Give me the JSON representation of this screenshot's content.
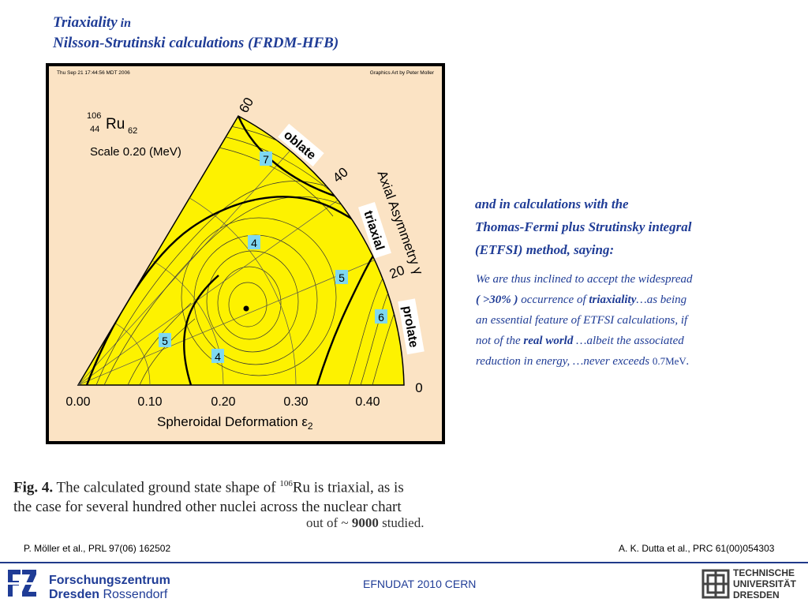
{
  "slide": {
    "title_word": "Triaxiality",
    "title_in": " in",
    "title_line2": "Nilsson-Strutinski calculations (FRDM-HFB)"
  },
  "figure": {
    "timestamp": "Thu Sep 21 17:44:56 MDT 2006",
    "credit": "Graphics Art by Peter Moller",
    "nucleus_mass": "106",
    "nucleus_z": "44",
    "nucleus_symbol": "Ru",
    "nucleus_n": "62",
    "scale_label": "Scale 0.20 (MeV)",
    "x_axis_label": "Spheroidal Deformation ε",
    "x_axis_sub": "2",
    "x_ticks": [
      "0.00",
      "0.10",
      "0.20",
      "0.30",
      "0.40"
    ],
    "gamma_axis_label": "Axial Asymmetry γ",
    "gamma_ticks": [
      "60",
      "40",
      "20",
      "0"
    ],
    "region_labels": [
      "oblate",
      "triaxial",
      "prolate"
    ],
    "contour_labels": [
      "7",
      "4",
      "5",
      "6",
      "5",
      "4"
    ],
    "colors": {
      "fill": "#fdf200",
      "background": "#fbe3c4",
      "label_box": "#7fd8f0"
    }
  },
  "right_text": {
    "heading_l1": "and in calculations with the",
    "heading_l2": "Thomas-Fermi plus Strutinsky integral",
    "heading_l3": "(ETFSI) method, saying:",
    "q_l1": "We are thus inclined to accept the widespread",
    "q_open": "( >30% )",
    "q_mid": " occurrence of ",
    "q_triax": "triaxiality",
    "q_end1": "…as being",
    "q_l3": "an essential feature of ETFSI calculations, if",
    "q_l4a": "not of the ",
    "q_real": "real world",
    "q_l4b": " …albeit the associated",
    "q_l5a": "reduction in energy, …never exceeds ",
    "q_mev": "0.7MeV",
    "q_l5b": "."
  },
  "caption": {
    "fig": "Fig. 4.",
    "text1": " The calculated ground state shape of ",
    "sup": "106",
    "text2": "Ru is triaxial, as is",
    "line2": "the case for several hundred other nuclei across the nuclear chart",
    "line3a": "out of ~ ",
    "line3b": "9000",
    "line3c": " studied."
  },
  "refs": {
    "left": "P. Möller et al., PRL 97(06) 162502",
    "right": "A. K. Dutta et al., PRC 61(00)054303"
  },
  "footer": {
    "center": "EFNUDAT 2010 CERN",
    "left_logo_l1": "Forschungszentrum",
    "left_logo_l2a": "Dresden",
    "left_logo_l2b": " Rossendorf",
    "right_logo_l1": "TECHNISCHE",
    "right_logo_l2": "UNIVERSITÄT",
    "right_logo_l3": "DRESDEN"
  }
}
